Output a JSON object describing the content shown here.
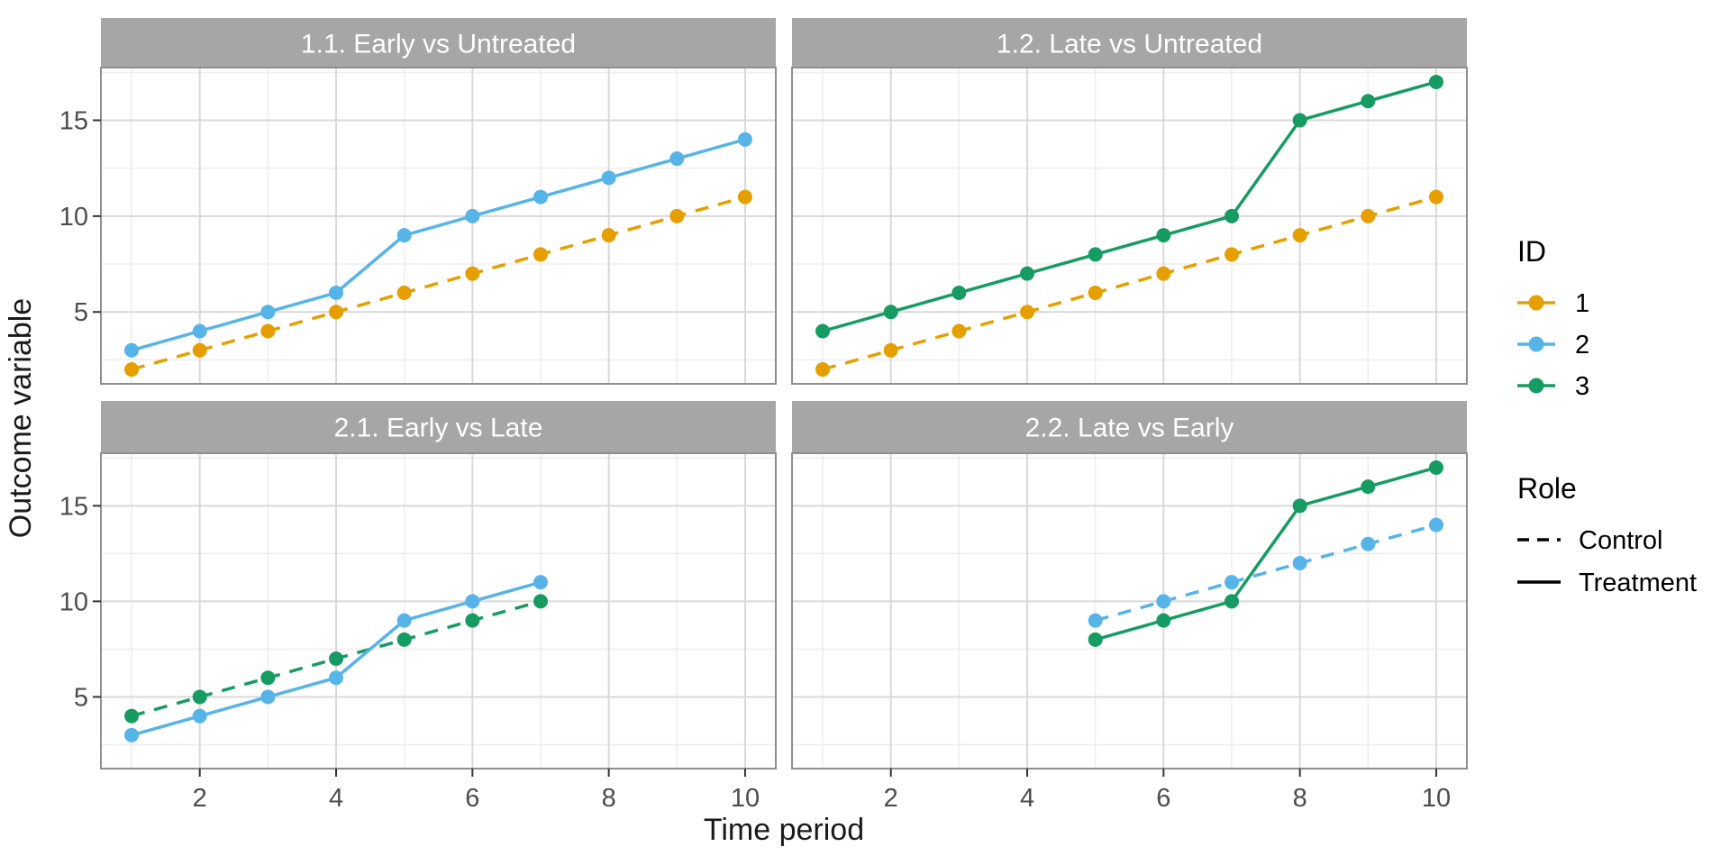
{
  "axes": {
    "x_title": "Time period",
    "y_title": "Outcome variable",
    "x_ticks": [
      2,
      4,
      6,
      8,
      10
    ],
    "y_ticks": [
      5,
      10,
      15
    ],
    "x_domain": [
      0.55,
      10.45
    ],
    "y_domain": [
      1.25,
      17.75
    ]
  },
  "palette": {
    "id_1_orange": "#E69F00",
    "id_2_blue": "#56B4E9",
    "id_3_green": "#169C62",
    "legend_key_black": "#000000",
    "strip_bg": "#A6A6A6",
    "strip_text": "#FFFFFF",
    "panel_bg": "#FFFFFF",
    "panel_border": "#8F8F8F",
    "grid_major": "#D9D9D9",
    "grid_minor": "#EDEDED",
    "tick_mark": "#333333",
    "tick_label": "#4D4D4D",
    "axis_title": "#1A1A1A"
  },
  "chart_data": [
    {
      "type": "line",
      "title": "1.1. Early vs Untreated",
      "xlabel": "Time period",
      "ylabel": "Outcome variable",
      "xlim": [
        0.55,
        10.45
      ],
      "ylim": [
        1.25,
        17.75
      ],
      "series": [
        {
          "name": "1",
          "role": "Control",
          "linetype": "dashed",
          "color": "#E69F00",
          "x": [
            1,
            2,
            3,
            4,
            5,
            6,
            7,
            8,
            9,
            10
          ],
          "y": [
            2,
            3,
            4,
            5,
            6,
            7,
            8,
            9,
            10,
            11
          ]
        },
        {
          "name": "2",
          "role": "Treatment",
          "linetype": "solid",
          "color": "#56B4E9",
          "x": [
            1,
            2,
            3,
            4,
            5,
            6,
            7,
            8,
            9,
            10
          ],
          "y": [
            3,
            4,
            5,
            6,
            9,
            10,
            11,
            12,
            13,
            14
          ]
        }
      ]
    },
    {
      "type": "line",
      "title": "1.2. Late vs Untreated",
      "xlabel": "Time period",
      "ylabel": "Outcome variable",
      "xlim": [
        0.55,
        10.45
      ],
      "ylim": [
        1.25,
        17.75
      ],
      "series": [
        {
          "name": "1",
          "role": "Control",
          "linetype": "dashed",
          "color": "#E69F00",
          "x": [
            1,
            2,
            3,
            4,
            5,
            6,
            7,
            8,
            9,
            10
          ],
          "y": [
            2,
            3,
            4,
            5,
            6,
            7,
            8,
            9,
            10,
            11
          ]
        },
        {
          "name": "3",
          "role": "Treatment",
          "linetype": "solid",
          "color": "#169C62",
          "x": [
            1,
            2,
            3,
            4,
            5,
            6,
            7,
            8,
            9,
            10
          ],
          "y": [
            4,
            5,
            6,
            7,
            8,
            9,
            10,
            15,
            16,
            17
          ]
        }
      ]
    },
    {
      "type": "line",
      "title": "2.1. Early vs Late",
      "xlabel": "Time period",
      "ylabel": "Outcome variable",
      "xlim": [
        0.55,
        10.45
      ],
      "ylim": [
        1.25,
        17.75
      ],
      "series": [
        {
          "name": "3",
          "role": "Control",
          "linetype": "dashed",
          "color": "#169C62",
          "x": [
            1,
            2,
            3,
            4,
            5,
            6,
            7
          ],
          "y": [
            4,
            5,
            6,
            7,
            8,
            9,
            10
          ]
        },
        {
          "name": "2",
          "role": "Treatment",
          "linetype": "solid",
          "color": "#56B4E9",
          "x": [
            1,
            2,
            3,
            4,
            5,
            6,
            7
          ],
          "y": [
            3,
            4,
            5,
            6,
            9,
            10,
            11
          ]
        }
      ]
    },
    {
      "type": "line",
      "title": "2.2. Late vs Early",
      "xlabel": "Time period",
      "ylabel": "Outcome variable",
      "xlim": [
        0.55,
        10.45
      ],
      "ylim": [
        1.25,
        17.75
      ],
      "series": [
        {
          "name": "2",
          "role": "Control",
          "linetype": "dashed",
          "color": "#56B4E9",
          "x": [
            5,
            6,
            7,
            8,
            9,
            10
          ],
          "y": [
            9,
            10,
            11,
            12,
            13,
            14
          ]
        },
        {
          "name": "3",
          "role": "Treatment",
          "linetype": "solid",
          "color": "#169C62",
          "x": [
            5,
            6,
            7,
            8,
            9,
            10
          ],
          "y": [
            8,
            9,
            10,
            15,
            16,
            17
          ]
        }
      ]
    }
  ],
  "legend": {
    "id": {
      "title": "ID",
      "entries": [
        {
          "label": "1",
          "color": "#E69F00"
        },
        {
          "label": "2",
          "color": "#56B4E9"
        },
        {
          "label": "3",
          "color": "#169C62"
        }
      ]
    },
    "role": {
      "title": "Role",
      "entries": [
        {
          "label": "Control",
          "linetype": "dashed"
        },
        {
          "label": "Treatment",
          "linetype": "solid"
        }
      ]
    }
  }
}
